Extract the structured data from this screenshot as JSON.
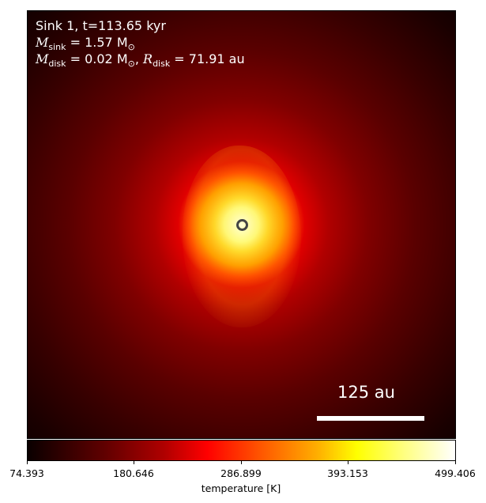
{
  "panel": {
    "title": "Sink 1, t=113.65 kyr",
    "m_sink": {
      "symbol": "M",
      "sub": "sink",
      "rest": " = 1.57 M",
      "unit_sub": "⊙"
    },
    "m_disk": {
      "symbol": "M",
      "sub": "disk",
      "rest": " = 0.02 M",
      "unit_sub": "⊙",
      "sep": ", "
    },
    "r_disk": {
      "symbol": "R",
      "sub": "disk",
      "rest": " = 71.91 au"
    },
    "scale_label": "125 au"
  },
  "colorbar": {
    "label": "temperature [K]",
    "ticks": [
      "74.393",
      "180.646",
      "286.899",
      "393.153",
      "499.406"
    ],
    "colormap": "hot"
  },
  "sink_marker_color": "#444444"
}
